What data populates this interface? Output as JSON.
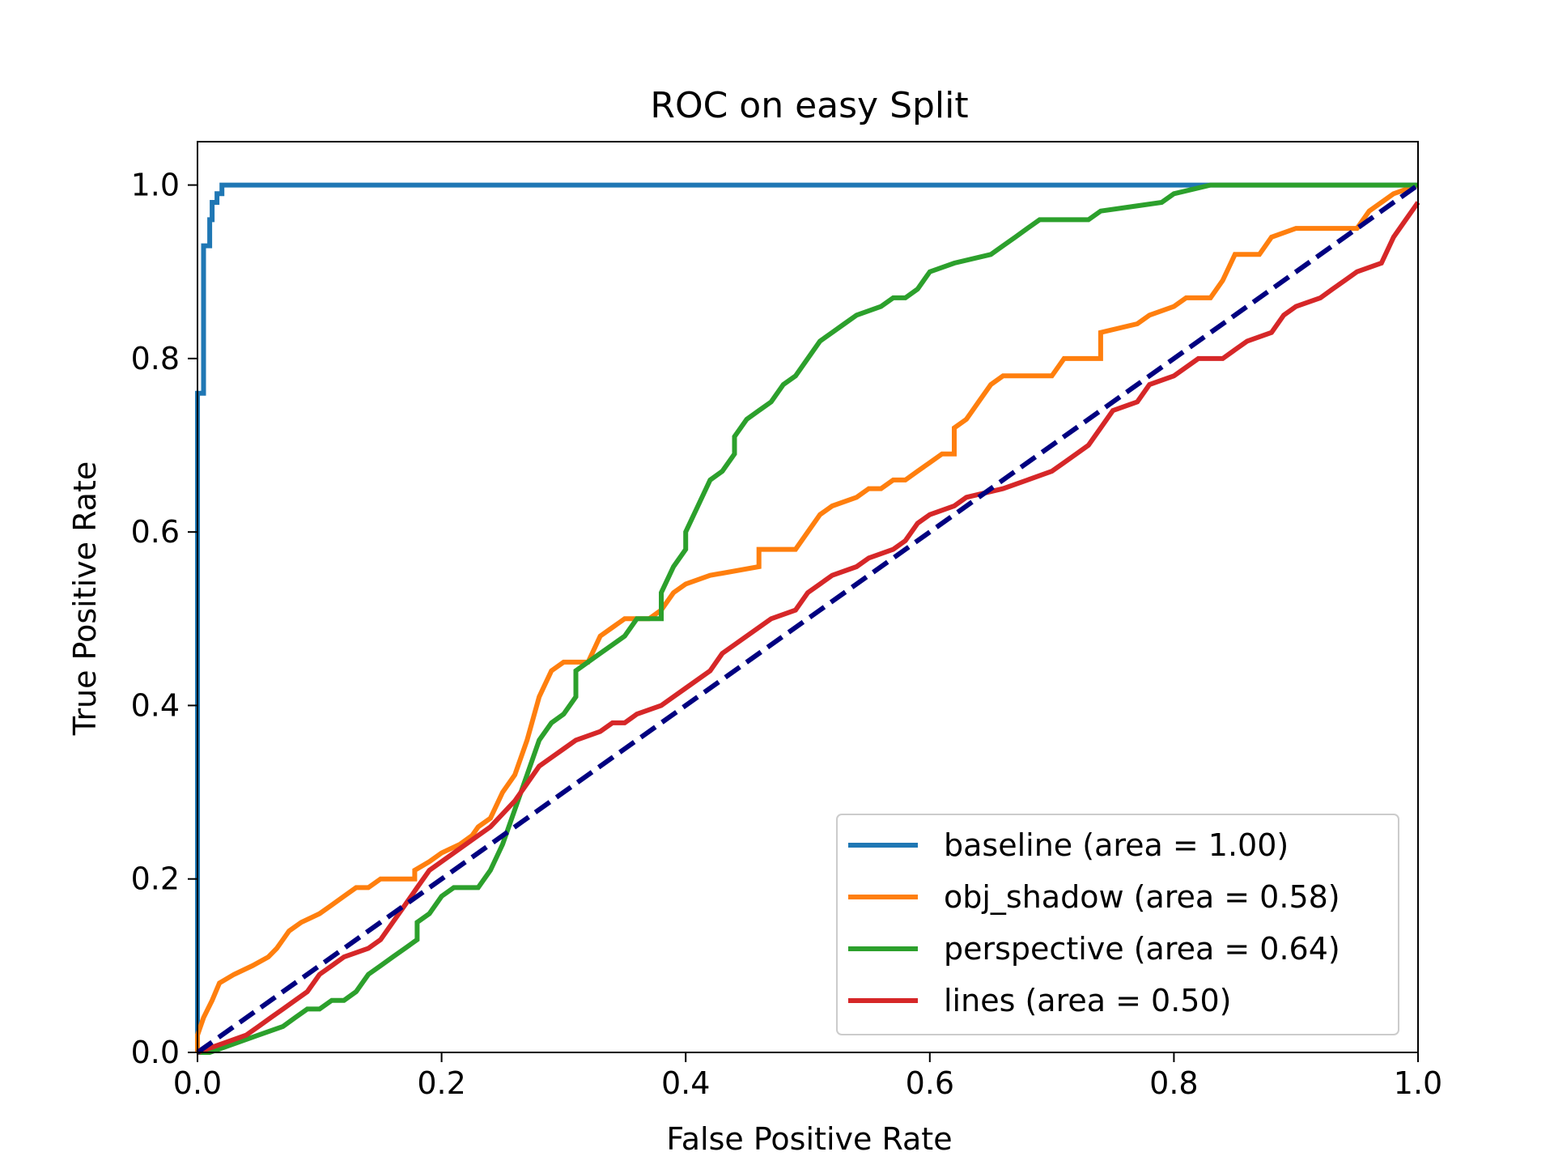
{
  "chart_data": {
    "type": "line",
    "title": "ROC on easy Split",
    "xlabel": "False Positive Rate",
    "ylabel": "True Positive Rate",
    "xlim": [
      0.0,
      1.0
    ],
    "ylim": [
      0.0,
      1.05
    ],
    "xticks": [
      0.0,
      0.2,
      0.4,
      0.6,
      0.8,
      1.0
    ],
    "yticks": [
      0.0,
      0.2,
      0.4,
      0.6,
      0.8,
      1.0
    ],
    "xtick_labels": [
      "0.0",
      "0.2",
      "0.4",
      "0.6",
      "0.8",
      "1.0"
    ],
    "ytick_labels": [
      "0.0",
      "0.2",
      "0.4",
      "0.6",
      "0.8",
      "1.0"
    ],
    "grid": false,
    "legend_position": "lower-right",
    "series": [
      {
        "name": "baseline (area = 1.00)",
        "color": "#1f77b4",
        "style": "solid",
        "points": [
          [
            0.0,
            0.0
          ],
          [
            0.0,
            0.76
          ],
          [
            0.005,
            0.76
          ],
          [
            0.005,
            0.93
          ],
          [
            0.01,
            0.93
          ],
          [
            0.01,
            0.96
          ],
          [
            0.012,
            0.96
          ],
          [
            0.012,
            0.98
          ],
          [
            0.016,
            0.98
          ],
          [
            0.016,
            0.99
          ],
          [
            0.02,
            0.99
          ],
          [
            0.02,
            1.0
          ],
          [
            1.0,
            1.0
          ]
        ]
      },
      {
        "name": "obj_shadow (area = 0.58)",
        "color": "#ff7f0e",
        "style": "solid",
        "points": [
          [
            0.0,
            0.0
          ],
          [
            0.0,
            0.02
          ],
          [
            0.005,
            0.04
          ],
          [
            0.012,
            0.06
          ],
          [
            0.018,
            0.08
          ],
          [
            0.03,
            0.09
          ],
          [
            0.045,
            0.1
          ],
          [
            0.058,
            0.11
          ],
          [
            0.065,
            0.12
          ],
          [
            0.07,
            0.13
          ],
          [
            0.075,
            0.14
          ],
          [
            0.085,
            0.15
          ],
          [
            0.1,
            0.16
          ],
          [
            0.11,
            0.17
          ],
          [
            0.12,
            0.18
          ],
          [
            0.13,
            0.19
          ],
          [
            0.14,
            0.19
          ],
          [
            0.15,
            0.2
          ],
          [
            0.178,
            0.2
          ],
          [
            0.178,
            0.21
          ],
          [
            0.19,
            0.22
          ],
          [
            0.2,
            0.23
          ],
          [
            0.215,
            0.24
          ],
          [
            0.225,
            0.25
          ],
          [
            0.23,
            0.26
          ],
          [
            0.24,
            0.27
          ],
          [
            0.25,
            0.3
          ],
          [
            0.26,
            0.32
          ],
          [
            0.27,
            0.36
          ],
          [
            0.28,
            0.41
          ],
          [
            0.29,
            0.44
          ],
          [
            0.3,
            0.45
          ],
          [
            0.32,
            0.45
          ],
          [
            0.33,
            0.48
          ],
          [
            0.34,
            0.49
          ],
          [
            0.35,
            0.5
          ],
          [
            0.37,
            0.5
          ],
          [
            0.38,
            0.51
          ],
          [
            0.39,
            0.53
          ],
          [
            0.4,
            0.54
          ],
          [
            0.42,
            0.55
          ],
          [
            0.46,
            0.56
          ],
          [
            0.46,
            0.58
          ],
          [
            0.49,
            0.58
          ],
          [
            0.5,
            0.6
          ],
          [
            0.51,
            0.62
          ],
          [
            0.52,
            0.63
          ],
          [
            0.54,
            0.64
          ],
          [
            0.55,
            0.65
          ],
          [
            0.56,
            0.65
          ],
          [
            0.57,
            0.66
          ],
          [
            0.58,
            0.66
          ],
          [
            0.59,
            0.67
          ],
          [
            0.6,
            0.68
          ],
          [
            0.61,
            0.69
          ],
          [
            0.62,
            0.69
          ],
          [
            0.62,
            0.72
          ],
          [
            0.63,
            0.73
          ],
          [
            0.64,
            0.75
          ],
          [
            0.65,
            0.77
          ],
          [
            0.66,
            0.78
          ],
          [
            0.7,
            0.78
          ],
          [
            0.71,
            0.8
          ],
          [
            0.74,
            0.8
          ],
          [
            0.74,
            0.83
          ],
          [
            0.77,
            0.84
          ],
          [
            0.78,
            0.85
          ],
          [
            0.8,
            0.86
          ],
          [
            0.81,
            0.87
          ],
          [
            0.83,
            0.87
          ],
          [
            0.84,
            0.89
          ],
          [
            0.85,
            0.92
          ],
          [
            0.87,
            0.92
          ],
          [
            0.88,
            0.94
          ],
          [
            0.9,
            0.95
          ],
          [
            0.95,
            0.95
          ],
          [
            0.96,
            0.97
          ],
          [
            0.97,
            0.98
          ],
          [
            0.98,
            0.99
          ],
          [
            1.0,
            1.0
          ]
        ]
      },
      {
        "name": "perspective (area = 0.64)",
        "color": "#2ca02c",
        "style": "solid",
        "points": [
          [
            0.0,
            0.0
          ],
          [
            0.01,
            0.0
          ],
          [
            0.03,
            0.01
          ],
          [
            0.05,
            0.02
          ],
          [
            0.07,
            0.03
          ],
          [
            0.08,
            0.04
          ],
          [
            0.09,
            0.05
          ],
          [
            0.1,
            0.05
          ],
          [
            0.11,
            0.06
          ],
          [
            0.12,
            0.06
          ],
          [
            0.13,
            0.07
          ],
          [
            0.14,
            0.09
          ],
          [
            0.15,
            0.1
          ],
          [
            0.16,
            0.11
          ],
          [
            0.17,
            0.12
          ],
          [
            0.18,
            0.13
          ],
          [
            0.18,
            0.15
          ],
          [
            0.19,
            0.16
          ],
          [
            0.2,
            0.18
          ],
          [
            0.21,
            0.19
          ],
          [
            0.23,
            0.19
          ],
          [
            0.24,
            0.21
          ],
          [
            0.25,
            0.24
          ],
          [
            0.26,
            0.28
          ],
          [
            0.27,
            0.32
          ],
          [
            0.28,
            0.36
          ],
          [
            0.29,
            0.38
          ],
          [
            0.3,
            0.39
          ],
          [
            0.31,
            0.41
          ],
          [
            0.31,
            0.44
          ],
          [
            0.33,
            0.46
          ],
          [
            0.34,
            0.47
          ],
          [
            0.35,
            0.48
          ],
          [
            0.36,
            0.5
          ],
          [
            0.38,
            0.5
          ],
          [
            0.38,
            0.53
          ],
          [
            0.39,
            0.56
          ],
          [
            0.4,
            0.58
          ],
          [
            0.4,
            0.6
          ],
          [
            0.41,
            0.63
          ],
          [
            0.42,
            0.66
          ],
          [
            0.43,
            0.67
          ],
          [
            0.44,
            0.69
          ],
          [
            0.44,
            0.71
          ],
          [
            0.45,
            0.73
          ],
          [
            0.46,
            0.74
          ],
          [
            0.47,
            0.75
          ],
          [
            0.48,
            0.77
          ],
          [
            0.49,
            0.78
          ],
          [
            0.5,
            0.8
          ],
          [
            0.51,
            0.82
          ],
          [
            0.52,
            0.83
          ],
          [
            0.53,
            0.84
          ],
          [
            0.54,
            0.85
          ],
          [
            0.56,
            0.86
          ],
          [
            0.57,
            0.87
          ],
          [
            0.58,
            0.87
          ],
          [
            0.59,
            0.88
          ],
          [
            0.6,
            0.9
          ],
          [
            0.62,
            0.91
          ],
          [
            0.65,
            0.92
          ],
          [
            0.66,
            0.93
          ],
          [
            0.67,
            0.94
          ],
          [
            0.68,
            0.95
          ],
          [
            0.69,
            0.96
          ],
          [
            0.73,
            0.96
          ],
          [
            0.74,
            0.97
          ],
          [
            0.79,
            0.98
          ],
          [
            0.8,
            0.99
          ],
          [
            0.83,
            1.0
          ],
          [
            1.0,
            1.0
          ]
        ]
      },
      {
        "name": "lines (area = 0.50)",
        "color": "#d62728",
        "style": "solid",
        "points": [
          [
            0.0,
            0.0
          ],
          [
            0.02,
            0.01
          ],
          [
            0.04,
            0.02
          ],
          [
            0.05,
            0.03
          ],
          [
            0.06,
            0.04
          ],
          [
            0.07,
            0.05
          ],
          [
            0.08,
            0.06
          ],
          [
            0.09,
            0.07
          ],
          [
            0.1,
            0.09
          ],
          [
            0.11,
            0.1
          ],
          [
            0.12,
            0.11
          ],
          [
            0.14,
            0.12
          ],
          [
            0.15,
            0.13
          ],
          [
            0.16,
            0.15
          ],
          [
            0.17,
            0.17
          ],
          [
            0.18,
            0.19
          ],
          [
            0.19,
            0.21
          ],
          [
            0.2,
            0.22
          ],
          [
            0.21,
            0.23
          ],
          [
            0.23,
            0.25
          ],
          [
            0.24,
            0.26
          ],
          [
            0.26,
            0.29
          ],
          [
            0.27,
            0.31
          ],
          [
            0.28,
            0.33
          ],
          [
            0.29,
            0.34
          ],
          [
            0.3,
            0.35
          ],
          [
            0.31,
            0.36
          ],
          [
            0.33,
            0.37
          ],
          [
            0.34,
            0.38
          ],
          [
            0.35,
            0.38
          ],
          [
            0.36,
            0.39
          ],
          [
            0.38,
            0.4
          ],
          [
            0.39,
            0.41
          ],
          [
            0.4,
            0.42
          ],
          [
            0.42,
            0.44
          ],
          [
            0.43,
            0.46
          ],
          [
            0.45,
            0.48
          ],
          [
            0.47,
            0.5
          ],
          [
            0.49,
            0.51
          ],
          [
            0.5,
            0.53
          ],
          [
            0.52,
            0.55
          ],
          [
            0.54,
            0.56
          ],
          [
            0.55,
            0.57
          ],
          [
            0.57,
            0.58
          ],
          [
            0.58,
            0.59
          ],
          [
            0.59,
            0.61
          ],
          [
            0.6,
            0.62
          ],
          [
            0.62,
            0.63
          ],
          [
            0.63,
            0.64
          ],
          [
            0.66,
            0.65
          ],
          [
            0.68,
            0.66
          ],
          [
            0.7,
            0.67
          ],
          [
            0.71,
            0.68
          ],
          [
            0.72,
            0.69
          ],
          [
            0.73,
            0.7
          ],
          [
            0.74,
            0.72
          ],
          [
            0.75,
            0.74
          ],
          [
            0.77,
            0.75
          ],
          [
            0.78,
            0.77
          ],
          [
            0.8,
            0.78
          ],
          [
            0.82,
            0.8
          ],
          [
            0.84,
            0.8
          ],
          [
            0.85,
            0.81
          ],
          [
            0.86,
            0.82
          ],
          [
            0.88,
            0.83
          ],
          [
            0.89,
            0.85
          ],
          [
            0.9,
            0.86
          ],
          [
            0.92,
            0.87
          ],
          [
            0.93,
            0.88
          ],
          [
            0.94,
            0.89
          ],
          [
            0.95,
            0.9
          ],
          [
            0.97,
            0.91
          ],
          [
            0.98,
            0.94
          ],
          [
            0.99,
            0.96
          ],
          [
            1.0,
            0.98
          ]
        ]
      },
      {
        "name": "",
        "color": "#000080",
        "style": "dashed",
        "points": [
          [
            0.0,
            0.0
          ],
          [
            1.0,
            1.0
          ]
        ]
      }
    ]
  }
}
